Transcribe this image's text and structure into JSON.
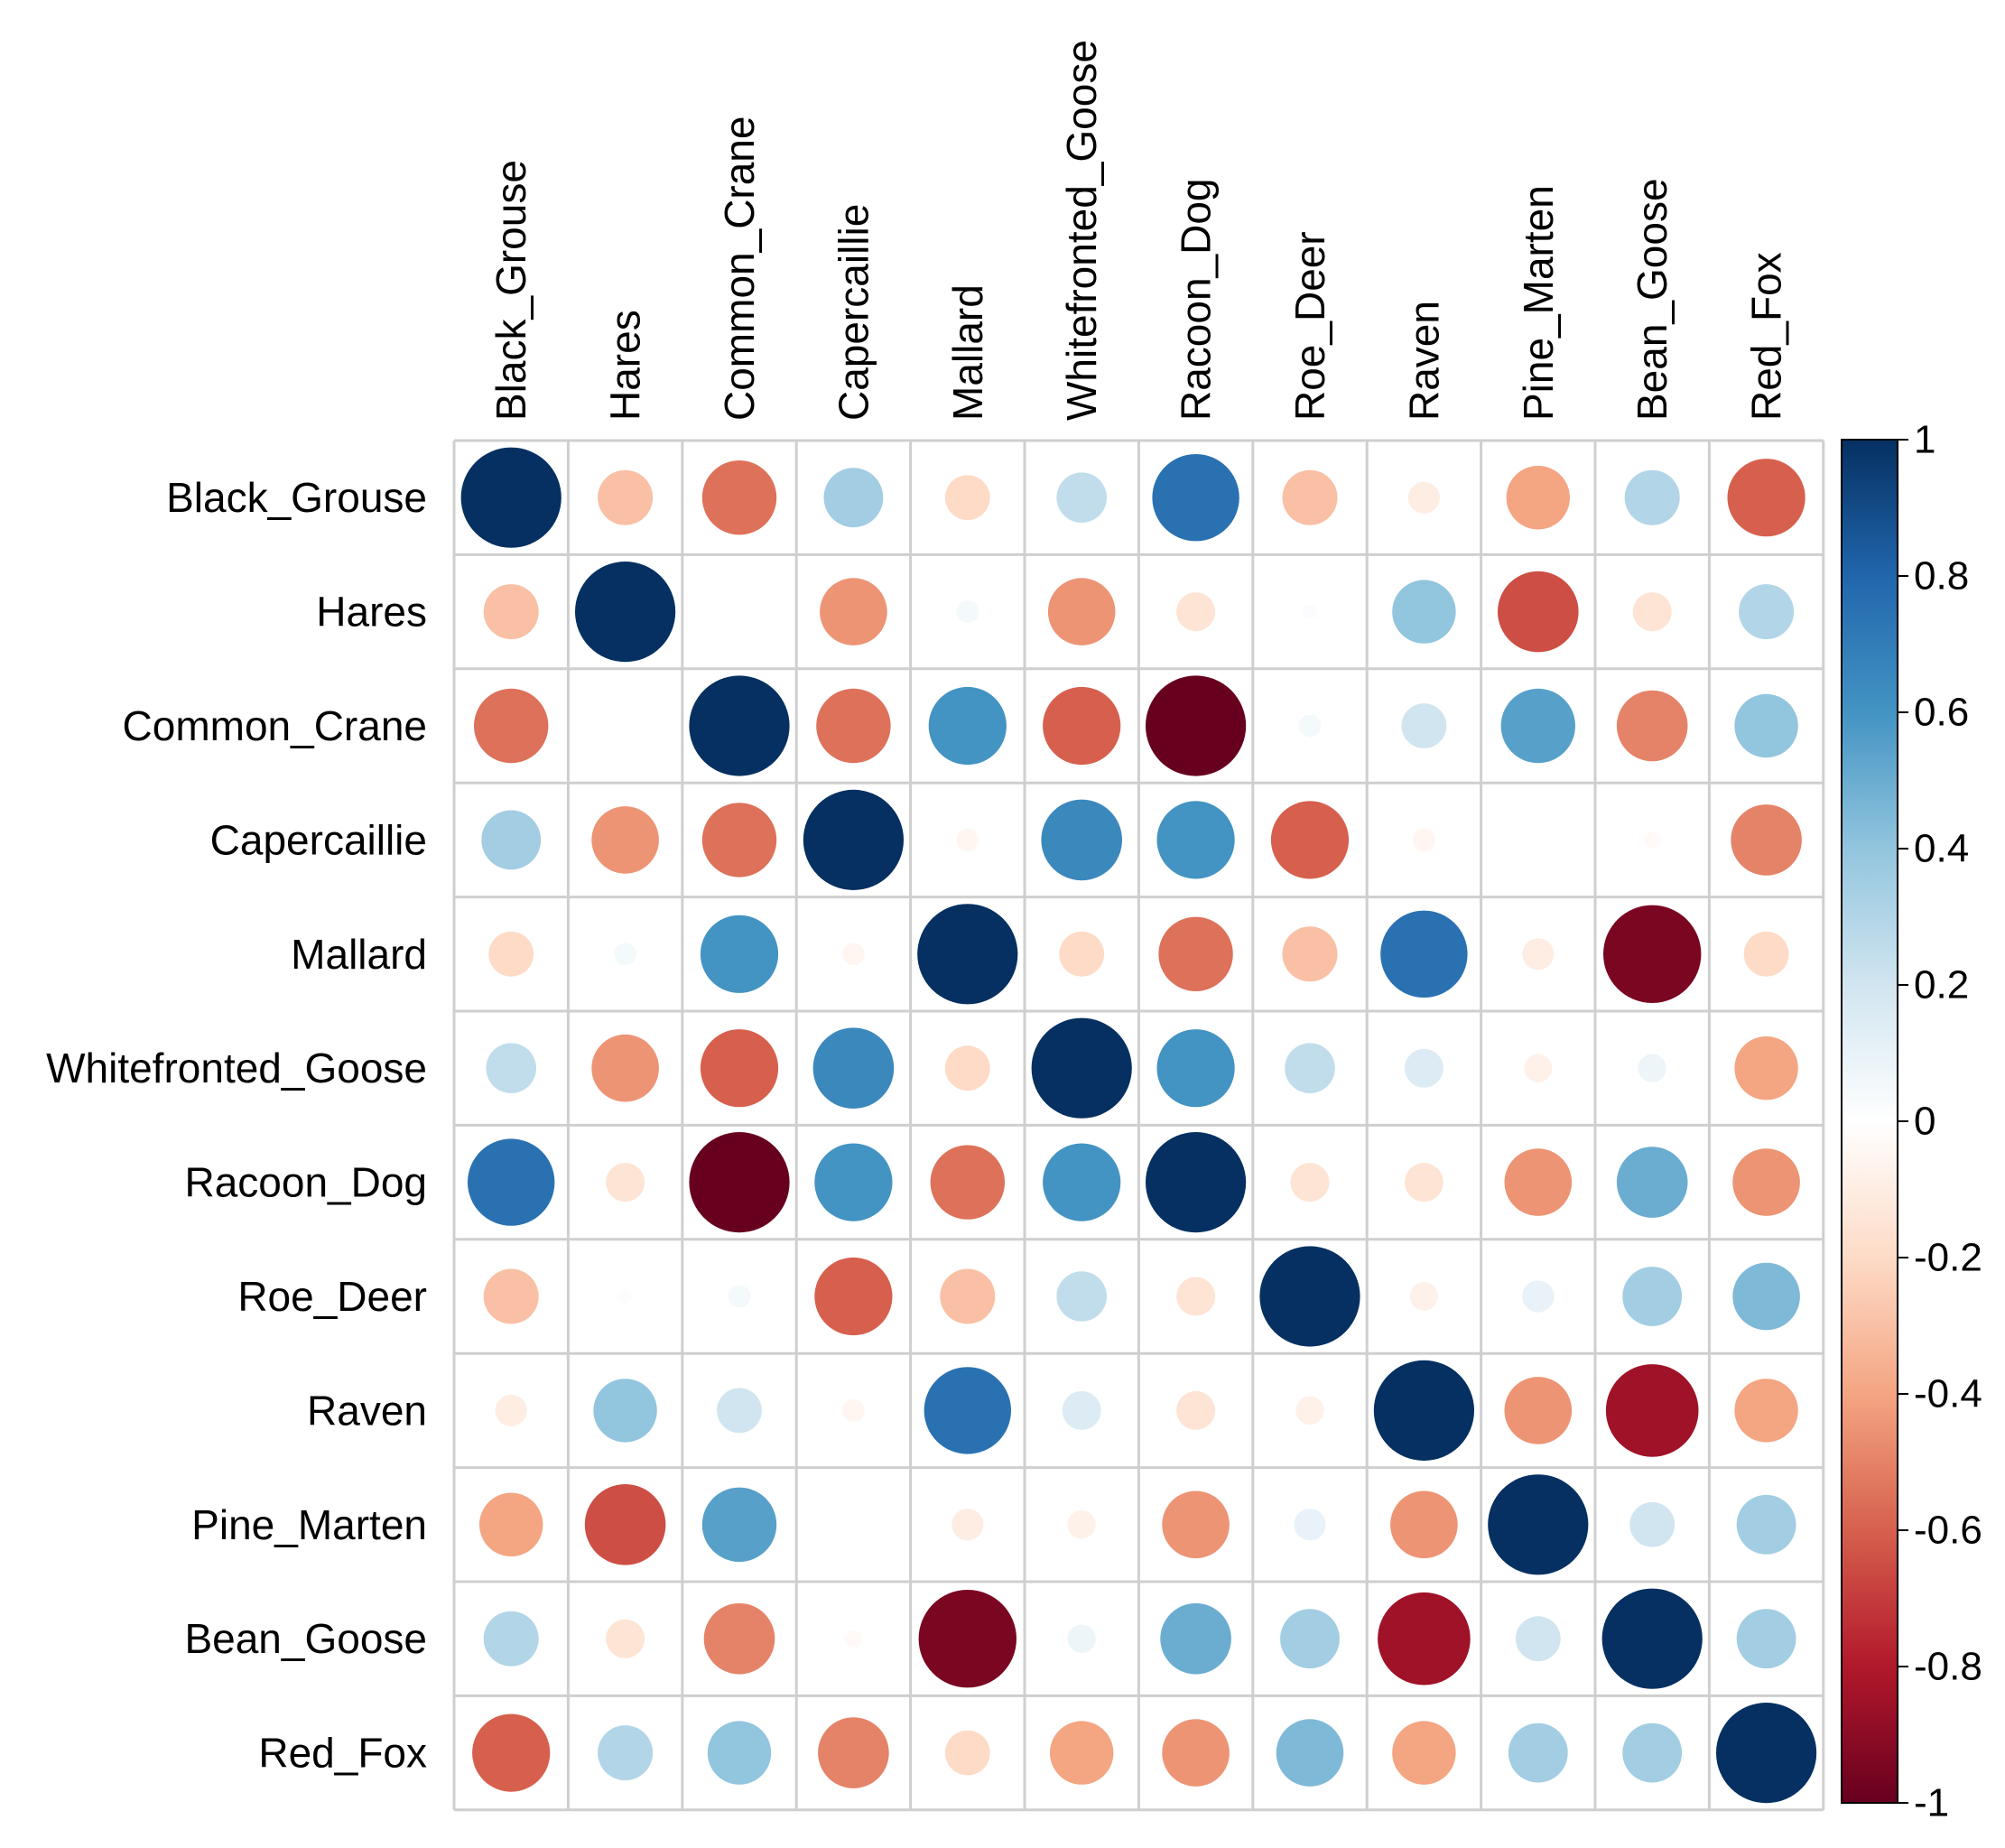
{
  "chart_data": {
    "type": "heatmap",
    "subtype": "correlation-circle-plot",
    "variables": [
      "Black_Grouse",
      "Hares",
      "Common_Crane",
      "Capercaillie",
      "Mallard",
      "Whitefronted_Goose",
      "Racoon_Dog",
      "Roe_Deer",
      "Raven",
      "Pine_Marten",
      "Bean_Goose",
      "Red_Fox"
    ],
    "matrix": [
      [
        1.0,
        -0.3,
        -0.55,
        0.35,
        -0.2,
        0.25,
        0.75,
        -0.3,
        -0.1,
        -0.4,
        0.3,
        -0.6
      ],
      [
        -0.3,
        1.0,
        0.0,
        -0.45,
        0.05,
        -0.45,
        -0.15,
        0.02,
        0.4,
        -0.65,
        -0.15,
        0.3
      ],
      [
        -0.55,
        0.0,
        1.0,
        -0.55,
        0.6,
        -0.6,
        -1.0,
        0.05,
        0.2,
        0.55,
        -0.5,
        0.4
      ],
      [
        0.35,
        -0.45,
        -0.55,
        1.0,
        -0.05,
        0.65,
        0.6,
        -0.6,
        -0.05,
        0.0,
        -0.03,
        -0.5
      ],
      [
        -0.2,
        0.05,
        0.6,
        -0.05,
        1.0,
        -0.2,
        -0.55,
        -0.3,
        0.75,
        -0.1,
        -0.95,
        -0.2
      ],
      [
        0.25,
        -0.45,
        -0.6,
        0.65,
        -0.2,
        1.0,
        0.6,
        0.25,
        0.15,
        -0.08,
        0.08,
        -0.4
      ],
      [
        0.75,
        -0.15,
        -1.0,
        0.6,
        -0.55,
        0.6,
        1.0,
        -0.15,
        -0.15,
        -0.45,
        0.5,
        -0.45
      ],
      [
        -0.3,
        0.02,
        0.05,
        -0.6,
        -0.3,
        0.25,
        -0.15,
        1.0,
        -0.08,
        0.1,
        0.35,
        0.45
      ],
      [
        -0.1,
        0.4,
        0.2,
        -0.05,
        0.75,
        0.15,
        -0.15,
        -0.08,
        1.0,
        -0.45,
        -0.85,
        -0.4
      ],
      [
        -0.4,
        -0.65,
        0.55,
        0.0,
        -0.1,
        -0.08,
        -0.45,
        0.1,
        -0.45,
        1.0,
        0.2,
        0.35
      ],
      [
        0.3,
        -0.15,
        -0.5,
        -0.03,
        -0.95,
        0.08,
        0.5,
        0.35,
        -0.85,
        0.2,
        1.0,
        0.35
      ],
      [
        -0.6,
        0.3,
        0.4,
        -0.5,
        -0.2,
        -0.4,
        -0.45,
        0.45,
        -0.4,
        0.35,
        0.35,
        1.0
      ]
    ],
    "colorbar": {
      "ticks": [
        "1",
        "0.8",
        "0.6",
        "0.4",
        "0.2",
        "0",
        "-0.2",
        "-0.4",
        "-0.6",
        "-0.8",
        "-1"
      ],
      "range": [
        -1,
        1
      ],
      "colors": [
        "#67001F",
        "#B2182B",
        "#D6604D",
        "#F4A582",
        "#FDDBC7",
        "#FFFFFF",
        "#D1E5F0",
        "#92C5DE",
        "#4393C3",
        "#2166AC",
        "#053061"
      ]
    },
    "legend_position": "right",
    "grid": true
  }
}
